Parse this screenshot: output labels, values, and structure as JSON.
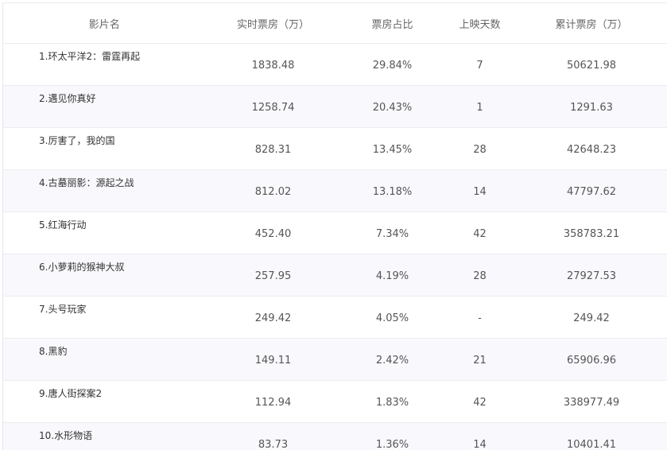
{
  "headers": [
    "影片名",
    "实时票房（万）",
    "票房占比",
    "上映天数",
    "累计票房（万）"
  ],
  "rows": [
    [
      "1.环太平洋2：雷霆再起",
      "1838.48",
      "29.84%",
      "7",
      "50621.98"
    ],
    [
      "2.遇见你真好",
      "1258.74",
      "20.43%",
      "1",
      "1291.63"
    ],
    [
      "3.厉害了，我的国",
      "828.31",
      "13.45%",
      "28",
      "42648.23"
    ],
    [
      "4.古墓丽影：源起之战",
      "812.02",
      "13.18%",
      "14",
      "47797.62"
    ],
    [
      "5.红海行动",
      "452.40",
      "7.34%",
      "42",
      "358783.21"
    ],
    [
      "6.小萝莉的猴神大叔",
      "257.95",
      "4.19%",
      "28",
      "27927.53"
    ],
    [
      "7.头号玩家",
      "249.42",
      "4.05%",
      "-",
      "249.42"
    ],
    [
      "8.黑豹",
      "149.11",
      "2.42%",
      "21",
      "65906.96"
    ],
    [
      "9.唐人街探案2",
      "112.94",
      "1.83%",
      "42",
      "338977.49"
    ],
    [
      "10.水形物语",
      "83.73",
      "1.36%",
      "14",
      "10401.41"
    ]
  ],
  "colors": {
    "alt_row": "#f9f8fc",
    "border": "#ececf0"
  }
}
